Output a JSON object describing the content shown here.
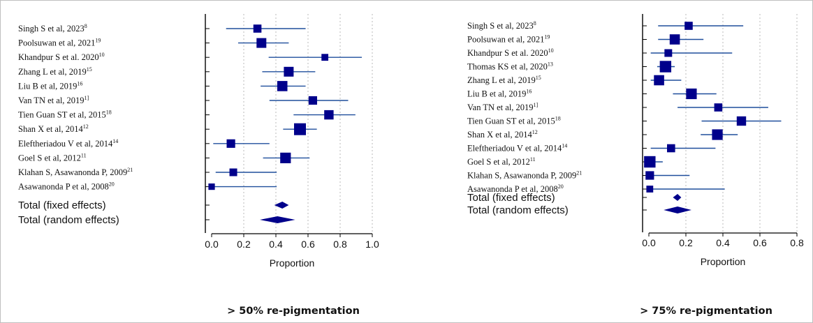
{
  "chart_data": [
    {
      "type": "forest",
      "xlabel": "Proportion",
      "caption": "> 50% re-pigmentation",
      "xlim": [
        0,
        1.0
      ],
      "ticks": [
        "0.0",
        "0.2",
        "0.4",
        "0.6",
        "0.8",
        "1.0"
      ],
      "tick_values": [
        0,
        0.2,
        0.4,
        0.6,
        0.8,
        1.0
      ],
      "grid": "vertical-dotted",
      "studies": [
        {
          "name": "Singh S et al, 2023",
          "ref": "8",
          "est": 0.285,
          "lo": 0.09,
          "hi": 0.585,
          "weight": 0.55
        },
        {
          "name": "Poolsuwan et al, 2021",
          "ref": "19",
          "est": 0.31,
          "lo": 0.165,
          "hi": 0.48,
          "weight": 0.75
        },
        {
          "name": "Khandpur  S et al. 2020",
          "ref": "10",
          "est": 0.705,
          "lo": 0.355,
          "hi": 0.935,
          "weight": 0.4
        },
        {
          "name": "Zhang L et al, 2019",
          "ref": "15",
          "est": 0.48,
          "lo": 0.315,
          "hi": 0.645,
          "weight": 0.75
        },
        {
          "name": "Liu B et al, 2019",
          "ref": "16",
          "est": 0.44,
          "lo": 0.305,
          "hi": 0.585,
          "weight": 0.8
        },
        {
          "name": "Van TN et al, 2019",
          "ref": "1]",
          "est": 0.63,
          "lo": 0.36,
          "hi": 0.85,
          "weight": 0.6
        },
        {
          "name": "Tien Guan ST et al, 2015",
          "ref": "18",
          "est": 0.73,
          "lo": 0.51,
          "hi": 0.895,
          "weight": 0.7
        },
        {
          "name": "Shan X et al, 2014",
          "ref": "12",
          "est": 0.55,
          "lo": 0.445,
          "hi": 0.655,
          "weight": 1.0
        },
        {
          "name": "Eleftheriadou V et al, 2014",
          "ref": "14",
          "est": 0.12,
          "lo": 0.01,
          "hi": 0.36,
          "weight": 0.6
        },
        {
          "name": "Goel S et al, 2012",
          "ref": "11",
          "est": 0.46,
          "lo": 0.32,
          "hi": 0.61,
          "weight": 0.85
        },
        {
          "name": "Klahan S, Asawanonda P, 2009",
          "ref": "21",
          "est": 0.135,
          "lo": 0.025,
          "hi": 0.405,
          "weight": 0.5
        },
        {
          "name": "Asawanonda P et al, 2008",
          "ref": "20",
          "est": 0.0,
          "lo": 0.0,
          "hi": 0.405,
          "weight": 0.35
        }
      ],
      "totals": [
        {
          "name": "Total (fixed effects)",
          "est": 0.44,
          "lo": 0.39,
          "hi": 0.48
        },
        {
          "name": "Total (random effects)",
          "est": 0.41,
          "lo": 0.3,
          "hi": 0.52
        }
      ]
    },
    {
      "type": "forest",
      "xlabel": "Proportion",
      "caption": "> 75% re-pigmentation",
      "xlim": [
        0,
        0.8
      ],
      "ticks": [
        "0.0",
        "0.2",
        "0.4",
        "0.6",
        "0.8"
      ],
      "tick_values": [
        0,
        0.2,
        0.4,
        0.6,
        0.8
      ],
      "grid": "vertical-dotted",
      "studies": [
        {
          "name": "Singh S et al, 2023",
          "ref": "8",
          "est": 0.215,
          "lo": 0.05,
          "hi": 0.51,
          "weight": 0.55
        },
        {
          "name": "Poolsuwan et al, 2021",
          "ref": "19",
          "est": 0.14,
          "lo": 0.05,
          "hi": 0.295,
          "weight": 0.8
        },
        {
          "name": "Khandpur  S et al. 2020",
          "ref": "10",
          "est": 0.105,
          "lo": 0.01,
          "hi": 0.45,
          "weight": 0.5
        },
        {
          "name": "Thomas KS et al, 2020",
          "ref": "13",
          "est": 0.09,
          "lo": 0.045,
          "hi": 0.14,
          "weight": 0.95
        },
        {
          "name": "Zhang L et al, 2019",
          "ref": "15",
          "est": 0.055,
          "lo": 0.01,
          "hi": 0.175,
          "weight": 0.8
        },
        {
          "name": "Liu B et al, 2019",
          "ref": "16",
          "est": 0.23,
          "lo": 0.13,
          "hi": 0.365,
          "weight": 0.85
        },
        {
          "name": "Van TN et al, 2019",
          "ref": "1]",
          "est": 0.375,
          "lo": 0.155,
          "hi": 0.645,
          "weight": 0.55
        },
        {
          "name": "Tien Guan ST et al, 2015",
          "ref": "18",
          "est": 0.5,
          "lo": 0.285,
          "hi": 0.715,
          "weight": 0.7
        },
        {
          "name": "Shan X et al, 2014",
          "ref": "12",
          "est": 0.37,
          "lo": 0.28,
          "hi": 0.48,
          "weight": 0.85
        },
        {
          "name": "Eleftheriadou V et al, 2014",
          "ref": "14",
          "est": 0.12,
          "lo": 0.01,
          "hi": 0.36,
          "weight": 0.55
        },
        {
          "name": "Goel S et al, 2012",
          "ref": "11",
          "est": 0.005,
          "lo": 0.0,
          "hi": 0.075,
          "weight": 0.95
        },
        {
          "name": "Klahan S, Asawanonda P, 2009",
          "ref": "21",
          "est": 0.005,
          "lo": 0.0,
          "hi": 0.22,
          "weight": 0.6
        },
        {
          "name": "Asawanonda P et al, 2008",
          "ref": "20",
          "est": 0.005,
          "lo": 0.0,
          "hi": 0.41,
          "weight": 0.4
        }
      ],
      "totals": [
        {
          "name": "Total (fixed effects)",
          "est": 0.155,
          "lo": 0.13,
          "hi": 0.175
        },
        {
          "name": "Total (random effects)",
          "est": 0.155,
          "lo": 0.08,
          "hi": 0.23
        }
      ]
    }
  ]
}
